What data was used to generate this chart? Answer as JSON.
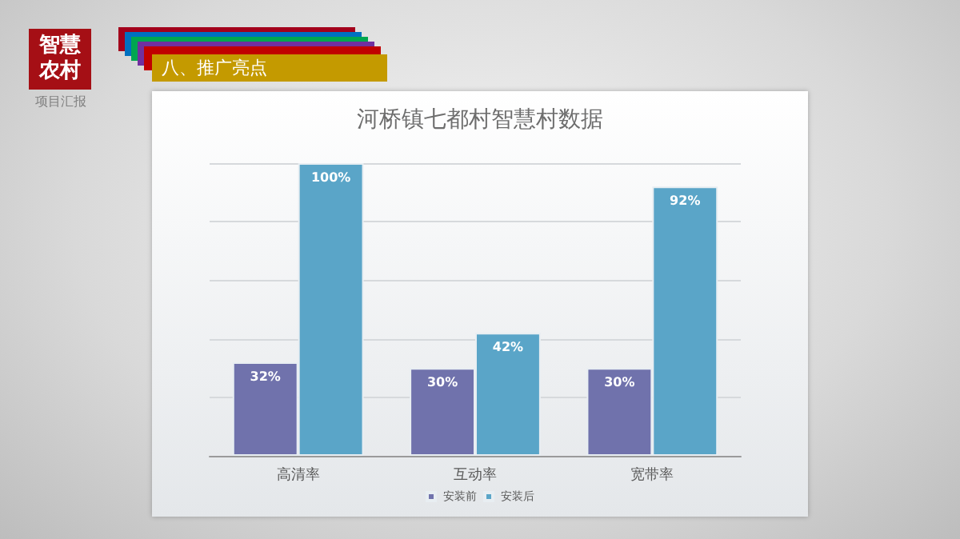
{
  "chart_data": {
    "type": "bar",
    "title": "河桥镇七都村智慧村数据",
    "annotations": [
      "智慧农村",
      "项目汇报",
      "八、推广亮点"
    ],
    "categories": [
      "高清率",
      "互动率",
      "宽带率"
    ],
    "series": [
      {
        "name": "安装前",
        "color": "#7072ac",
        "values": [
          32,
          30,
          30
        ],
        "value_labels": [
          "32%",
          "30%",
          "30%"
        ]
      },
      {
        "name": "安装后",
        "color": "#5aa5c8",
        "values": [
          100,
          42,
          92
        ],
        "value_labels": [
          "100%",
          "42%",
          "92%"
        ]
      }
    ],
    "ylim": [
      0,
      100
    ],
    "yticks": [
      {
        "value": 0,
        "label": null
      },
      {
        "value": 20,
        "label": null
      },
      {
        "value": 40,
        "label": null
      },
      {
        "value": 60,
        "label": null
      },
      {
        "value": 80,
        "label": null
      },
      {
        "value": 100,
        "label": null
      }
    ],
    "grid": "y",
    "legend": "bottom",
    "tick_labels": "x"
  }
}
